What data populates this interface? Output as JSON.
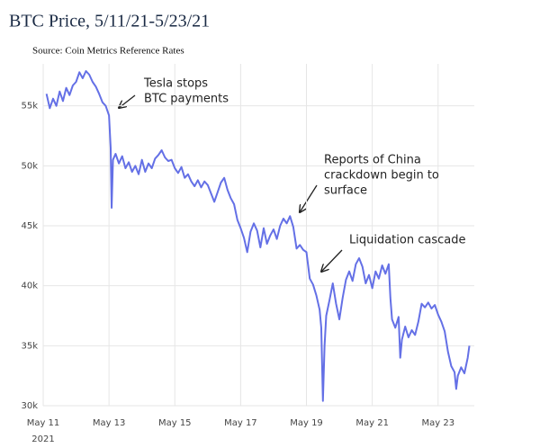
{
  "chart_data": {
    "type": "line",
    "title": "BTC Price, 5/11/21-5/23/21",
    "subtitle": "Source: Coin Metrics Reference Rates",
    "x_year_label": "2021",
    "xlim": [
      11,
      24.1
    ],
    "xticks": [
      {
        "value": 11,
        "label": "May 11"
      },
      {
        "value": 13,
        "label": "May 13"
      },
      {
        "value": 15,
        "label": "May 15"
      },
      {
        "value": 17,
        "label": "May 17"
      },
      {
        "value": 19,
        "label": "May 19"
      },
      {
        "value": 21,
        "label": "May 21"
      },
      {
        "value": 23,
        "label": "May 23"
      }
    ],
    "ylim": [
      30000,
      58500
    ],
    "yticks": [
      {
        "value": 30000,
        "label": "30k"
      },
      {
        "value": 35000,
        "label": "35k"
      },
      {
        "value": 40000,
        "label": "40k"
      },
      {
        "value": 45000,
        "label": "45k"
      },
      {
        "value": 50000,
        "label": "50k"
      },
      {
        "value": 55000,
        "label": "55k"
      }
    ],
    "grid": true,
    "x": [
      11.1,
      11.2,
      11.3,
      11.4,
      11.5,
      11.6,
      11.7,
      11.8,
      11.9,
      12.0,
      12.1,
      12.2,
      12.3,
      12.4,
      12.5,
      12.6,
      12.7,
      12.8,
      12.9,
      13.0,
      13.05,
      13.08,
      13.12,
      13.2,
      13.3,
      13.4,
      13.5,
      13.6,
      13.7,
      13.8,
      13.9,
      14.0,
      14.1,
      14.2,
      14.3,
      14.4,
      14.5,
      14.6,
      14.7,
      14.8,
      14.9,
      15.0,
      15.1,
      15.2,
      15.3,
      15.4,
      15.5,
      15.6,
      15.7,
      15.8,
      15.9,
      16.0,
      16.1,
      16.2,
      16.3,
      16.4,
      16.5,
      16.6,
      16.7,
      16.8,
      16.9,
      17.0,
      17.1,
      17.2,
      17.3,
      17.4,
      17.5,
      17.6,
      17.7,
      17.8,
      17.9,
      18.0,
      18.1,
      18.2,
      18.3,
      18.4,
      18.5,
      18.6,
      18.7,
      18.8,
      18.9,
      19.0,
      19.1,
      19.2,
      19.3,
      19.4,
      19.45,
      19.5,
      19.55,
      19.6,
      19.7,
      19.8,
      19.9,
      20.0,
      20.1,
      20.2,
      20.3,
      20.4,
      20.5,
      20.6,
      20.7,
      20.8,
      20.9,
      21.0,
      21.1,
      21.2,
      21.3,
      21.4,
      21.5,
      21.55,
      21.6,
      21.7,
      21.8,
      21.85,
      21.9,
      22.0,
      22.1,
      22.2,
      22.3,
      22.4,
      22.5,
      22.6,
      22.7,
      22.8,
      22.9,
      23.0,
      23.1,
      23.2,
      23.3,
      23.4,
      23.5,
      23.55,
      23.6,
      23.7,
      23.8,
      23.9,
      23.95
    ],
    "series": [
      {
        "name": "BTC Price",
        "color": "#6470e6",
        "values": [
          56000,
          54800,
          55600,
          55000,
          56200,
          55400,
          56500,
          55900,
          56700,
          57000,
          57800,
          57300,
          57900,
          57600,
          57000,
          56600,
          56000,
          55300,
          55000,
          54200,
          51500,
          46500,
          50500,
          51000,
          50200,
          50800,
          49800,
          50300,
          49500,
          50000,
          49300,
          50500,
          49500,
          50200,
          49800,
          50600,
          50900,
          51300,
          50700,
          50400,
          50500,
          49800,
          49400,
          49900,
          49000,
          49300,
          48700,
          48300,
          48800,
          48200,
          48700,
          48400,
          47700,
          47000,
          47800,
          48600,
          49000,
          48000,
          47300,
          46800,
          45500,
          44800,
          44000,
          42800,
          44500,
          45200,
          44600,
          43200,
          44800,
          43500,
          44200,
          44700,
          43900,
          45000,
          45600,
          45200,
          45800,
          44900,
          43100,
          43400,
          43000,
          42800,
          40600,
          40100,
          39200,
          38000,
          36500,
          30400,
          35000,
          37500,
          38800,
          40200,
          38500,
          37200,
          39000,
          40500,
          41200,
          40400,
          41800,
          42300,
          41600,
          40200,
          40900,
          39800,
          41200,
          40600,
          41700,
          41000,
          41800,
          39000,
          37200,
          36500,
          37400,
          34000,
          35500,
          36600,
          35700,
          36300,
          35900,
          37000,
          38500,
          38200,
          38600,
          38100,
          38400,
          37600,
          37000,
          36200,
          34500,
          33300,
          32800,
          31400,
          32500,
          33200,
          32700,
          34000,
          35000
        ]
      }
    ],
    "annotations": [
      {
        "lines": [
          "Tesla stops",
          "BTC payments"
        ]
      },
      {
        "lines": [
          "Reports of China",
          "crackdown begin to",
          "surface"
        ]
      },
      {
        "lines": [
          "Liquidation cascade"
        ]
      }
    ]
  }
}
